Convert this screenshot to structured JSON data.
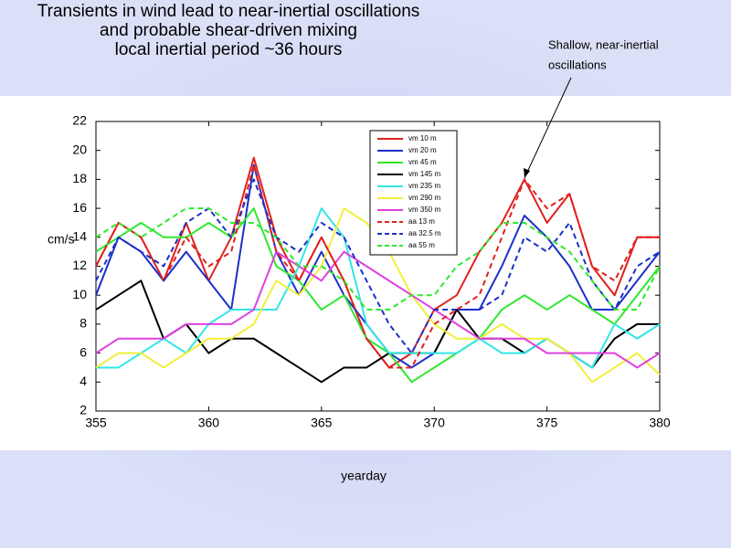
{
  "chart_data": {
    "type": "line",
    "title": [
      "Transients in wind lead to near-inertial oscillations",
      "and probable shear-driven mixing",
      "local inertial period ~36 hours"
    ],
    "annotation": [
      "Shallow, near-inertial",
      "oscillations"
    ],
    "x_label": "yearday",
    "y_label": "cm/s",
    "x": [
      355,
      356,
      357,
      358,
      359,
      360,
      361,
      362,
      363,
      364,
      365,
      366,
      367,
      368,
      369,
      370,
      371,
      372,
      373,
      374,
      375,
      376,
      377,
      378,
      379,
      380
    ],
    "xlim": [
      355,
      380
    ],
    "xticks": [
      355,
      360,
      365,
      370,
      375,
      380
    ],
    "ylim": [
      2,
      22
    ],
    "yticks": [
      2,
      4,
      6,
      8,
      10,
      12,
      14,
      16,
      18,
      20,
      22
    ],
    "series": [
      {
        "name": "vm 10 m",
        "color": "#e0211c",
        "dash": false,
        "values": [
          12,
          15,
          14,
          11,
          15,
          11,
          14,
          19.5,
          14,
          11,
          14,
          11,
          7,
          5,
          6,
          9,
          10,
          13,
          15,
          18,
          15,
          17,
          12,
          10,
          14,
          14
        ]
      },
      {
        "name": "vm 20 m",
        "color": "#1c30c8",
        "dash": false,
        "values": [
          10,
          14,
          13,
          11,
          13,
          11,
          9,
          19,
          13,
          10,
          13,
          10,
          8,
          6,
          5,
          6,
          9,
          9,
          12,
          15.5,
          14,
          12,
          9,
          9,
          11,
          13
        ]
      },
      {
        "name": "vm 45 m",
        "color": "#2ee82e",
        "dash": false,
        "values": [
          13,
          14,
          15,
          14,
          14,
          15,
          14,
          16,
          12,
          11,
          9,
          10,
          7,
          6,
          4,
          5,
          6,
          7,
          9,
          10,
          9,
          10,
          9,
          8,
          10,
          12
        ]
      },
      {
        "name": "vm 145 m",
        "color": "#000000",
        "dash": false,
        "values": [
          9,
          10,
          11,
          7,
          8,
          6,
          7,
          7,
          6,
          5,
          4,
          5,
          5,
          6,
          6,
          6,
          9,
          7,
          7,
          6,
          7,
          6,
          5,
          7,
          8,
          8
        ]
      },
      {
        "name": "vm 235 m",
        "color": "#33e6e6",
        "dash": false,
        "values": [
          5,
          5,
          6,
          7,
          6,
          8,
          9,
          9,
          9,
          12,
          16,
          14,
          8,
          6,
          6,
          6,
          6,
          7,
          6,
          6,
          7,
          6,
          5,
          8,
          7,
          8
        ]
      },
      {
        "name": "vm 290 m",
        "color": "#f0f03a",
        "dash": false,
        "values": [
          5,
          6,
          6,
          5,
          6,
          7,
          7,
          8,
          11,
          10,
          12,
          16,
          15,
          13,
          10,
          8,
          7,
          7,
          8,
          7,
          7,
          6,
          4,
          5,
          6,
          4.5
        ]
      },
      {
        "name": "vm 350 m",
        "color": "#e040e0",
        "dash": false,
        "values": [
          6,
          7,
          7,
          7,
          8,
          8,
          8,
          9,
          13,
          12,
          11,
          13,
          12,
          11,
          10,
          9,
          8,
          7,
          7,
          7,
          6,
          6,
          6,
          6,
          5,
          6
        ]
      },
      {
        "name": "aa 13 m",
        "color": "#e0211c",
        "dash": true,
        "values": [
          12,
          15,
          14,
          11,
          14,
          12,
          13,
          19,
          13,
          11,
          14,
          11,
          7,
          5,
          5,
          8,
          9,
          10,
          14,
          18,
          16,
          17,
          12,
          11,
          14,
          14
        ]
      },
      {
        "name": "aa 32.5 m",
        "color": "#1c30c8",
        "dash": true,
        "values": [
          11,
          14,
          13,
          12,
          15,
          16,
          14,
          18,
          14,
          13,
          15,
          14,
          11,
          8,
          6,
          9,
          9,
          9,
          10,
          14,
          13,
          15,
          11,
          9,
          12,
          13
        ]
      },
      {
        "name": "aa 55 m",
        "color": "#2ee82e",
        "dash": true,
        "values": [
          14,
          15,
          14,
          15,
          16,
          16,
          15,
          15,
          14,
          12,
          12,
          11,
          9,
          9,
          10,
          10,
          12,
          13,
          15,
          15,
          14,
          13,
          11,
          9,
          9,
          12
        ]
      }
    ]
  }
}
